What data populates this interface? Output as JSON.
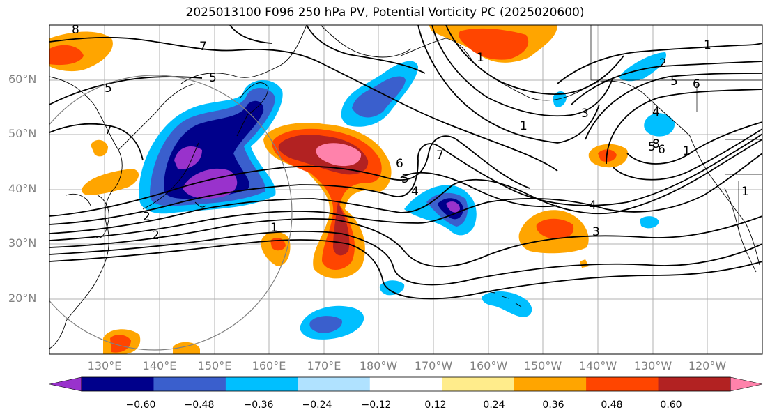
{
  "title": "2025013100 F096 250 hPa PV, Potential Vorticity PC (2025020600)",
  "lat_labels": [
    "60°N",
    "50°N",
    "40°N",
    "30°N",
    "20°N"
  ],
  "lon_labels": [
    "130°E",
    "140°E",
    "150°E",
    "160°E",
    "170°E",
    "180°W",
    "170°W",
    "160°W",
    "150°W",
    "140°W",
    "130°W",
    "120°W"
  ],
  "contour_labels": [
    "8",
    "7",
    "5",
    "5",
    "7",
    "1",
    "2",
    "2",
    "1",
    "6",
    "5",
    "4",
    "7",
    "6",
    "5",
    "4",
    "1",
    "3",
    "1",
    "2",
    "5",
    "6",
    "8",
    "1",
    "4",
    "3",
    "1"
  ],
  "colorbar": {
    "colors": [
      "#9932cc",
      "#00008b",
      "#3a5fcd",
      "#00bfff",
      "#b0e2ff",
      "#ffffff",
      "#ffec8b",
      "#ffa500",
      "#ff4500",
      "#b22222",
      "#ff82ab"
    ],
    "ticks": [
      "−0.60",
      "−0.48",
      "−0.36",
      "−0.24",
      "−0.12",
      "0.12",
      "0.24",
      "0.36",
      "0.48",
      "0.60"
    ]
  }
}
